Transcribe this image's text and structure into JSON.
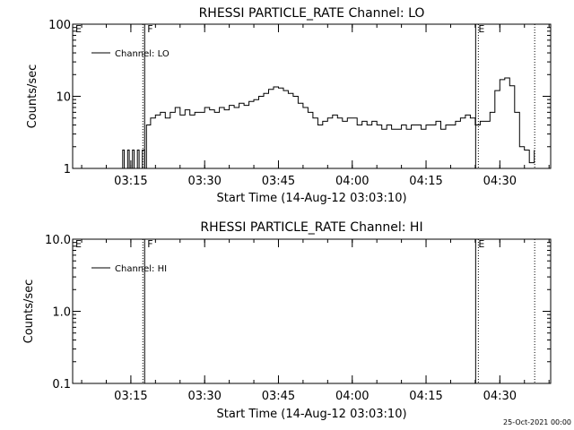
{
  "chart_data": [
    {
      "type": "line",
      "title": "RHESSI PARTICLE_RATE Channel: LO",
      "xlabel": "Start Time (14-Aug-12 03:03:10)",
      "ylabel": "Counts/sec",
      "y_scale": "log",
      "ylim": [
        1,
        100
      ],
      "y_ticks": [
        {
          "v": 1,
          "label": "1"
        },
        {
          "v": 10,
          "label": "10"
        },
        {
          "v": 100,
          "label": "100"
        }
      ],
      "xlim": [
        "03:03:10",
        "04:40:20"
      ],
      "x_ticks": [
        "03:15",
        "03:30",
        "03:45",
        "04:00",
        "04:15",
        "04:30"
      ],
      "legend": {
        "position": "top-left",
        "entries": [
          "Channel: LO"
        ]
      },
      "markers": [
        {
          "label": "E",
          "at": "03:03:10",
          "style": "none"
        },
        {
          "label": "F",
          "at": "03:17:48",
          "style": "dotted-solid"
        },
        {
          "label": "E",
          "at": "04:25:05",
          "style": "solid-dotted"
        },
        {
          "label": "",
          "at": "04:37:05",
          "style": "dotted"
        }
      ],
      "series": [
        {
          "name": "Channel: LO",
          "x": [
            "03:12:40",
            "03:13:20",
            "03:13:40",
            "03:14:20",
            "03:14:40",
            "03:15:20",
            "03:15:40",
            "03:16:20",
            "03:16:40",
            "03:17:20",
            "03:17:48",
            "03:18:10",
            "03:19:00",
            "03:20:00",
            "03:21:00",
            "03:22:00",
            "03:23:00",
            "03:24:00",
            "03:25:00",
            "03:26:00",
            "03:27:00",
            "03:28:00",
            "03:29:00",
            "03:30:00",
            "03:31:00",
            "03:32:00",
            "03:33:00",
            "03:34:00",
            "03:35:00",
            "03:36:00",
            "03:37:00",
            "03:38:00",
            "03:39:00",
            "03:40:00",
            "03:41:00",
            "03:42:00",
            "03:43:00",
            "03:44:00",
            "03:45:00",
            "03:46:00",
            "03:47:00",
            "03:48:00",
            "03:49:00",
            "03:50:00",
            "03:51:00",
            "03:52:00",
            "03:53:00",
            "03:54:00",
            "03:55:00",
            "03:56:00",
            "03:57:00",
            "03:58:00",
            "03:59:00",
            "04:00:00",
            "04:01:00",
            "04:02:00",
            "04:03:00",
            "04:04:00",
            "04:05:00",
            "04:06:00",
            "04:07:00",
            "04:08:00",
            "04:09:00",
            "04:10:00",
            "04:11:00",
            "04:12:00",
            "04:13:00",
            "04:14:00",
            "04:15:00",
            "04:16:00",
            "04:17:00",
            "04:18:00",
            "04:19:00",
            "04:20:00",
            "04:21:00",
            "04:22:00",
            "04:23:00",
            "04:24:00",
            "04:25:00",
            "04:26:00",
            "04:27:00",
            "04:28:00",
            "04:29:00",
            "04:30:00",
            "04:31:00",
            "04:32:00",
            "04:33:00",
            "04:34:00",
            "04:35:00",
            "04:36:00",
            "04:37:00"
          ],
          "values": [
            1,
            1.8,
            1,
            1.8,
            1,
            1.8,
            1,
            1.8,
            1,
            1.8,
            1,
            4,
            5,
            5.5,
            6,
            5,
            6,
            7,
            5.5,
            6.5,
            5.5,
            6,
            6,
            7,
            6.5,
            6,
            7,
            6.5,
            7.5,
            7,
            8,
            7.5,
            8.5,
            9,
            10,
            11,
            12.5,
            13.5,
            13,
            12,
            11,
            10,
            8,
            7,
            6,
            5,
            4,
            4.5,
            5,
            5.5,
            5,
            4.5,
            5,
            5,
            4,
            4.5,
            4,
            4.5,
            4,
            3.5,
            4,
            3.5,
            3.5,
            4,
            3.5,
            4,
            4,
            3.5,
            4,
            4,
            4.5,
            3.5,
            4,
            4,
            4.5,
            5,
            5.5,
            5,
            4,
            4.5,
            4.5,
            6,
            12,
            17,
            18,
            14,
            6,
            2,
            1.8,
            1.2,
            1.8
          ]
        }
      ]
    },
    {
      "type": "line",
      "title": "RHESSI PARTICLE_RATE Channel: HI",
      "xlabel": "Start Time (14-Aug-12 03:03:10)",
      "ylabel": "Counts/sec",
      "y_scale": "log",
      "ylim": [
        0.1,
        10
      ],
      "y_ticks": [
        {
          "v": 0.1,
          "label": "0.1"
        },
        {
          "v": 1,
          "label": "1.0"
        },
        {
          "v": 10,
          "label": "10.0"
        }
      ],
      "xlim": [
        "03:03:10",
        "04:40:20"
      ],
      "x_ticks": [
        "03:15",
        "03:30",
        "03:45",
        "04:00",
        "04:15",
        "04:30"
      ],
      "legend": {
        "position": "top-left",
        "entries": [
          "Channel: HI"
        ]
      },
      "markers": [
        {
          "label": "E",
          "at": "03:03:10",
          "style": "none"
        },
        {
          "label": "F",
          "at": "03:17:48",
          "style": "dotted-solid"
        },
        {
          "label": "E",
          "at": "04:25:05",
          "style": "solid-dotted"
        },
        {
          "label": "",
          "at": "04:37:05",
          "style": "dotted"
        }
      ],
      "series": [
        {
          "name": "Channel: HI",
          "x": [],
          "values": []
        }
      ]
    }
  ],
  "footer": {
    "timestamp": "25-Oct-2021 00:00"
  }
}
